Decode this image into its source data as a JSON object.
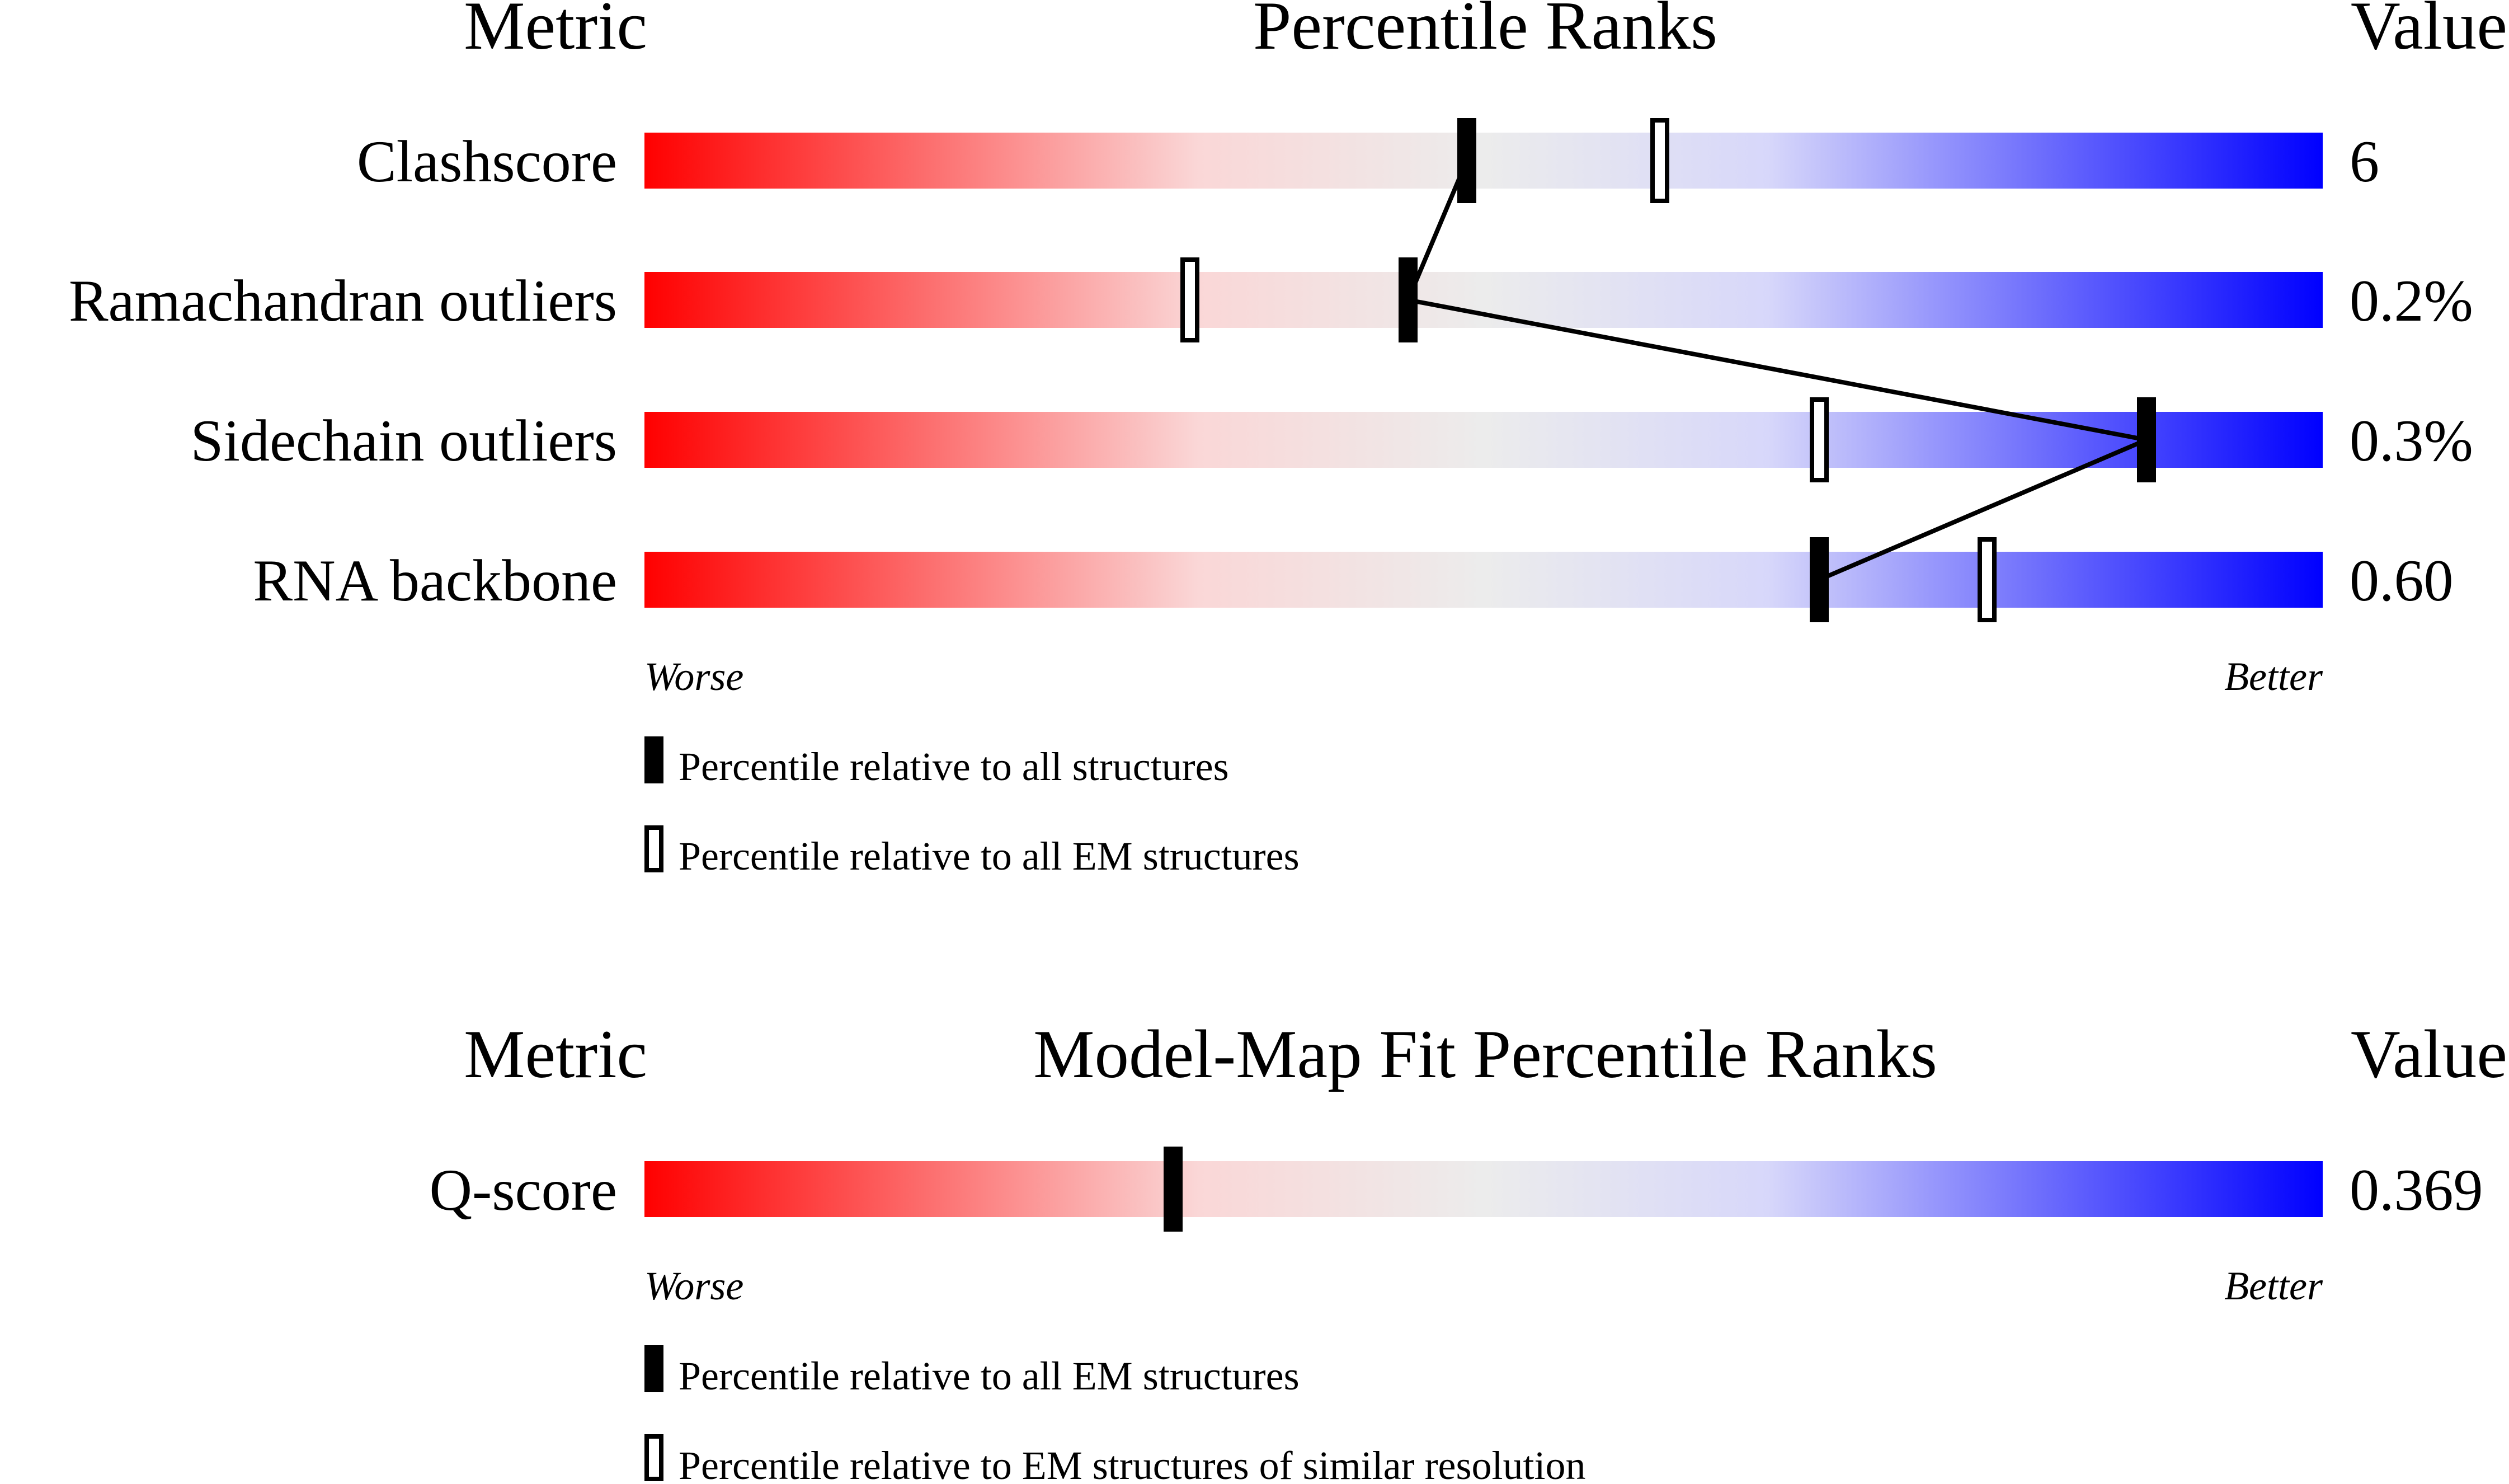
{
  "chart_data": [
    {
      "type": "percentile-slider",
      "headers": {
        "metric": "Metric",
        "title": "Percentile Ranks",
        "value": "Value"
      },
      "x_range": [
        0,
        100
      ],
      "axis_labels": {
        "left": "Worse",
        "right": "Better"
      },
      "rows": [
        {
          "metric": "Clashscore",
          "value": "6",
          "percentile_all": 49,
          "percentile_em": 60.5
        },
        {
          "metric": "Ramachandran outliers",
          "value": "0.2%",
          "percentile_all": 45.5,
          "percentile_em": 32.5
        },
        {
          "metric": "Sidechain outliers",
          "value": "0.3%",
          "percentile_all": 89.5,
          "percentile_em": 70
        },
        {
          "metric": "RNA backbone",
          "value": "0.60",
          "percentile_all": 70,
          "percentile_em": 80
        }
      ],
      "legend": [
        {
          "marker": "filled",
          "label": "Percentile relative to all structures"
        },
        {
          "marker": "open",
          "label": "Percentile relative to all EM structures"
        }
      ]
    },
    {
      "type": "percentile-slider",
      "headers": {
        "metric": "Metric",
        "title": "Model-Map Fit Percentile Ranks",
        "value": "Value"
      },
      "x_range": [
        0,
        100
      ],
      "axis_labels": {
        "left": "Worse",
        "right": "Better"
      },
      "rows": [
        {
          "metric": "Q-score",
          "value": "0.369",
          "percentile_all": 31.5
        }
      ],
      "legend": [
        {
          "marker": "filled",
          "label": "Percentile relative to all EM structures"
        },
        {
          "marker": "open",
          "label": "Percentile relative to EM structures of similar resolution"
        }
      ]
    }
  ],
  "colors": {
    "worse": "#ff0000",
    "mid_pink": "#fad7d7",
    "neutral": "#ececec",
    "mid_blue": "#d7d7fa",
    "better": "#0000ff",
    "marker": "#000000"
  }
}
